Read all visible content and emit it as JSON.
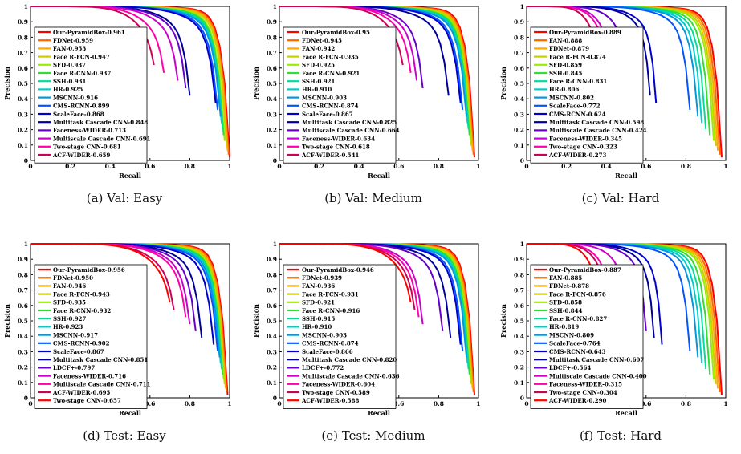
{
  "colors": [
    "#ff0000",
    "#ff6600",
    "#ffaa00",
    "#cccc00",
    "#99ee00",
    "#33dd33",
    "#00dd99",
    "#00cccc",
    "#0099dd",
    "#0055ff",
    "#0000cc",
    "#000099",
    "#6600cc",
    "#cc00cc",
    "#ff00aa",
    "#cc0055"
  ],
  "chart_data": [
    {
      "type": "line",
      "caption": "(a) Val: Easy",
      "xlabel": "Recall",
      "ylabel": "Precision",
      "xlim": [
        0,
        1
      ],
      "ylim": [
        0,
        1
      ],
      "xticks": [
        "0",
        "0.2",
        "0.4",
        "0.6",
        "0.8",
        "1"
      ],
      "yticks": [
        "0",
        "0.1",
        "0.2",
        "0.3",
        "0.4",
        "0.5",
        "0.6",
        "0.7",
        "0.8",
        "0.9",
        "1"
      ],
      "legend_position": "center-left",
      "series": [
        {
          "name": "Our-PyramidBox-0.961",
          "end": 1.0
        },
        {
          "name": "FDNet-0.959",
          "end": 0.995
        },
        {
          "name": "FAN-0.953",
          "end": 0.99
        },
        {
          "name": "Face R-FCN-0.947",
          "end": 0.985
        },
        {
          "name": "SFD-0.937",
          "end": 0.975
        },
        {
          "name": "Face R-CNN-0.937",
          "end": 0.97
        },
        {
          "name": "SSH-0.931",
          "end": 0.965
        },
        {
          "name": "HR-0.925",
          "end": 0.96
        },
        {
          "name": "MSCNN-0.916",
          "end": 0.955
        },
        {
          "name": "CMS-RCNN-0.899",
          "end": 0.94
        },
        {
          "name": "ScaleFace-0.868",
          "end": 0.93
        },
        {
          "name": "Multitask Cascade CNN-0.848",
          "end": 0.8
        },
        {
          "name": "Faceness-WIDER-0.713",
          "end": 0.78
        },
        {
          "name": "Multiscale Cascade CNN-0.691",
          "end": 0.74
        },
        {
          "name": "Two-stage CNN-0.681",
          "end": 0.67
        },
        {
          "name": "ACF-WIDER-0.659",
          "end": 0.62
        }
      ]
    },
    {
      "type": "line",
      "caption": "(b) Val: Medium",
      "xlabel": "Recall",
      "ylabel": "Precision",
      "xlim": [
        0,
        1
      ],
      "ylim": [
        0,
        1
      ],
      "xticks": [
        "0",
        "0.2",
        "0.4",
        "0.6",
        "0.8",
        "1"
      ],
      "yticks": [
        "0",
        "0.1",
        "0.2",
        "0.3",
        "0.4",
        "0.5",
        "0.6",
        "0.7",
        "0.8",
        "0.9",
        "1"
      ],
      "legend_position": "center-left",
      "series": [
        {
          "name": "Our-PyramidBox-0.95",
          "end": 0.98
        },
        {
          "name": "FDNet-0.945",
          "end": 0.975
        },
        {
          "name": "FAN-0.942",
          "end": 0.97
        },
        {
          "name": "Face R-FCN-0.935",
          "end": 0.965
        },
        {
          "name": "SFD-0.925",
          "end": 0.96
        },
        {
          "name": "Face R-CNN-0.921",
          "end": 0.955
        },
        {
          "name": "SSH-0.921",
          "end": 0.95
        },
        {
          "name": "HR-0.910",
          "end": 0.945
        },
        {
          "name": "MSCNN-0.903",
          "end": 0.94
        },
        {
          "name": "CMS-RCNN-0.874",
          "end": 0.92
        },
        {
          "name": "ScaleFace-0.867",
          "end": 0.91
        },
        {
          "name": "Multitask Cascade CNN-0.825",
          "end": 0.85
        },
        {
          "name": "Multiscale Cascade CNN-0.664",
          "end": 0.72
        },
        {
          "name": "Faceness-WIDER-0.634",
          "end": 0.69
        },
        {
          "name": "Two-stage CNN-0.618",
          "end": 0.66
        },
        {
          "name": "ACF-WIDER-0.541",
          "end": 0.62
        }
      ]
    },
    {
      "type": "line",
      "caption": "(c) Val: Hard",
      "xlabel": "Recall",
      "ylabel": "Precision",
      "xlim": [
        0,
        1
      ],
      "ylim": [
        0,
        1
      ],
      "xticks": [
        "0",
        "0.2",
        "0.4",
        "0.6",
        "0.8",
        "1"
      ],
      "yticks": [
        "0",
        "0.1",
        "0.2",
        "0.3",
        "0.4",
        "0.5",
        "0.6",
        "0.7",
        "0.8",
        "0.9",
        "1"
      ],
      "legend_position": "center-left",
      "series": [
        {
          "name": "Our-PyramidBox-0.889",
          "end": 0.98
        },
        {
          "name": "FAN-0.888",
          "end": 0.97
        },
        {
          "name": "FDNet-0.879",
          "end": 0.96
        },
        {
          "name": "Face R-FCN-0.874",
          "end": 0.95
        },
        {
          "name": "SFD-0.859",
          "end": 0.94
        },
        {
          "name": "SSH-0.845",
          "end": 0.92
        },
        {
          "name": "Face R-CNN-0.831",
          "end": 0.9
        },
        {
          "name": "HR-0.806",
          "end": 0.88
        },
        {
          "name": "MSCNN-0.802",
          "end": 0.86
        },
        {
          "name": "ScaleFace-0.772",
          "end": 0.82
        },
        {
          "name": "CMS-RCNN-0.624",
          "end": 0.65
        },
        {
          "name": "Multitask Cascade CNN-0.598",
          "end": 0.62
        },
        {
          "name": "Multiscale Cascade CNN-0.424",
          "end": 0.5
        },
        {
          "name": "Faceness-WIDER-0.345",
          "end": 0.42
        },
        {
          "name": "Two-stage CNN-0.323",
          "end": 0.4
        },
        {
          "name": "ACF-WIDER-0.273",
          "end": 0.36
        }
      ]
    },
    {
      "type": "line",
      "caption": "(d) Test: Easy",
      "xlabel": "Recall",
      "ylabel": "Precision",
      "xlim": [
        0,
        1
      ],
      "ylim": [
        0,
        1
      ],
      "xticks": [
        "0",
        "0.2",
        "0.4",
        "0.6",
        "0.8",
        "1"
      ],
      "yticks": [
        "0",
        "0.1",
        "0.2",
        "0.3",
        "0.4",
        "0.5",
        "0.6",
        "0.7",
        "0.8",
        "0.9",
        "1"
      ],
      "legend_position": "center-left",
      "series": [
        {
          "name": "Our-PyramidBox-0.956",
          "end": 0.99
        },
        {
          "name": "FDNet-0.950",
          "end": 0.985
        },
        {
          "name": "FAN-0.946",
          "end": 0.98
        },
        {
          "name": "Face R-FCN-0.943",
          "end": 0.975
        },
        {
          "name": "SFD-0.935",
          "end": 0.97
        },
        {
          "name": "Face R-CNN-0.932",
          "end": 0.965
        },
        {
          "name": "SSH-0.927",
          "end": 0.96
        },
        {
          "name": "HR-0.923",
          "end": 0.955
        },
        {
          "name": "MSCNN-0.917",
          "end": 0.95
        },
        {
          "name": "CMS-RCNN-0.902",
          "end": 0.94
        },
        {
          "name": "ScaleFace-0.867",
          "end": 0.92
        },
        {
          "name": "Multitask Cascade CNN-0.851",
          "end": 0.86
        },
        {
          "name": "LDCF+-0.797",
          "end": 0.83
        },
        {
          "name": "Faceness-WIDER-0.716",
          "end": 0.8
        },
        {
          "name": "Multiscale Cascade CNN-0.711",
          "end": 0.78
        },
        {
          "name": "ACF-WIDER-0.695",
          "end": 0.72
        },
        {
          "name": "Two-stage CNN-0.657",
          "end": 0.7
        }
      ]
    },
    {
      "type": "line",
      "caption": "(e) Test: Medium",
      "xlabel": "Recall",
      "ylabel": "Precision",
      "xlim": [
        0,
        1
      ],
      "ylim": [
        0,
        1
      ],
      "xticks": [
        "0",
        "0.2",
        "0.4",
        "0.6",
        "0.8",
        "1"
      ],
      "yticks": [
        "0",
        "0.1",
        "0.2",
        "0.3",
        "0.4",
        "0.5",
        "0.6",
        "0.7",
        "0.8",
        "0.9",
        "1"
      ],
      "legend_position": "center-left",
      "series": [
        {
          "name": "Our-PyramidBox-0.946",
          "end": 0.98
        },
        {
          "name": "FDNet-0.939",
          "end": 0.975
        },
        {
          "name": "FAN-0.936",
          "end": 0.97
        },
        {
          "name": "Face R-FCN-0.931",
          "end": 0.965
        },
        {
          "name": "SFD-0.921",
          "end": 0.96
        },
        {
          "name": "Face R-CNN-0.916",
          "end": 0.955
        },
        {
          "name": "SSH-0.915",
          "end": 0.95
        },
        {
          "name": "HR-0.910",
          "end": 0.945
        },
        {
          "name": "MSCNN-0.903",
          "end": 0.94
        },
        {
          "name": "CMS-RCNN-0.874",
          "end": 0.92
        },
        {
          "name": "ScaleFace-0.866",
          "end": 0.91
        },
        {
          "name": "Multitask Cascade CNN-0.820",
          "end": 0.86
        },
        {
          "name": "LDCF+-0.772",
          "end": 0.82
        },
        {
          "name": "Multiscale Cascade CNN-0.636",
          "end": 0.72
        },
        {
          "name": "Faceness-WIDER-0.604",
          "end": 0.7
        },
        {
          "name": "Two-stage CNN-0.589",
          "end": 0.68
        },
        {
          "name": "ACF-WIDER-0.588",
          "end": 0.66
        }
      ]
    },
    {
      "type": "line",
      "caption": "(f) Test: Hard",
      "xlabel": "Recall",
      "ylabel": "Precision",
      "xlim": [
        0,
        1
      ],
      "ylim": [
        0,
        1
      ],
      "xticks": [
        "0",
        "0.2",
        "0.4",
        "0.6",
        "0.8",
        "1"
      ],
      "yticks": [
        "0",
        "0.1",
        "0.2",
        "0.3",
        "0.4",
        "0.5",
        "0.6",
        "0.7",
        "0.8",
        "0.9",
        "1"
      ],
      "legend_position": "center-left",
      "series": [
        {
          "name": "Our-PyramidBox-0.887",
          "end": 0.98
        },
        {
          "name": "FAN-0.885",
          "end": 0.97
        },
        {
          "name": "FDNet-0.878",
          "end": 0.96
        },
        {
          "name": "Face R-FCN-0.876",
          "end": 0.95
        },
        {
          "name": "SFD-0.858",
          "end": 0.94
        },
        {
          "name": "SSH-0.844",
          "end": 0.92
        },
        {
          "name": "Face R-CNN-0.827",
          "end": 0.9
        },
        {
          "name": "HR-0.819",
          "end": 0.88
        },
        {
          "name": "MSCNN-0.809",
          "end": 0.86
        },
        {
          "name": "ScaleFace-0.764",
          "end": 0.82
        },
        {
          "name": "CMS-RCNN-0.643",
          "end": 0.68
        },
        {
          "name": "Multitask Cascade CNN-0.607",
          "end": 0.64
        },
        {
          "name": "LDCF+-0.564",
          "end": 0.6
        },
        {
          "name": "Multiscale Cascade CNN-0.400",
          "end": 0.5
        },
        {
          "name": "Faceness-WIDER-0.315",
          "end": 0.42
        },
        {
          "name": "Two-stage CNN-0.304",
          "end": 0.4
        },
        {
          "name": "ACF-WIDER-0.290",
          "end": 0.36
        }
      ]
    }
  ]
}
